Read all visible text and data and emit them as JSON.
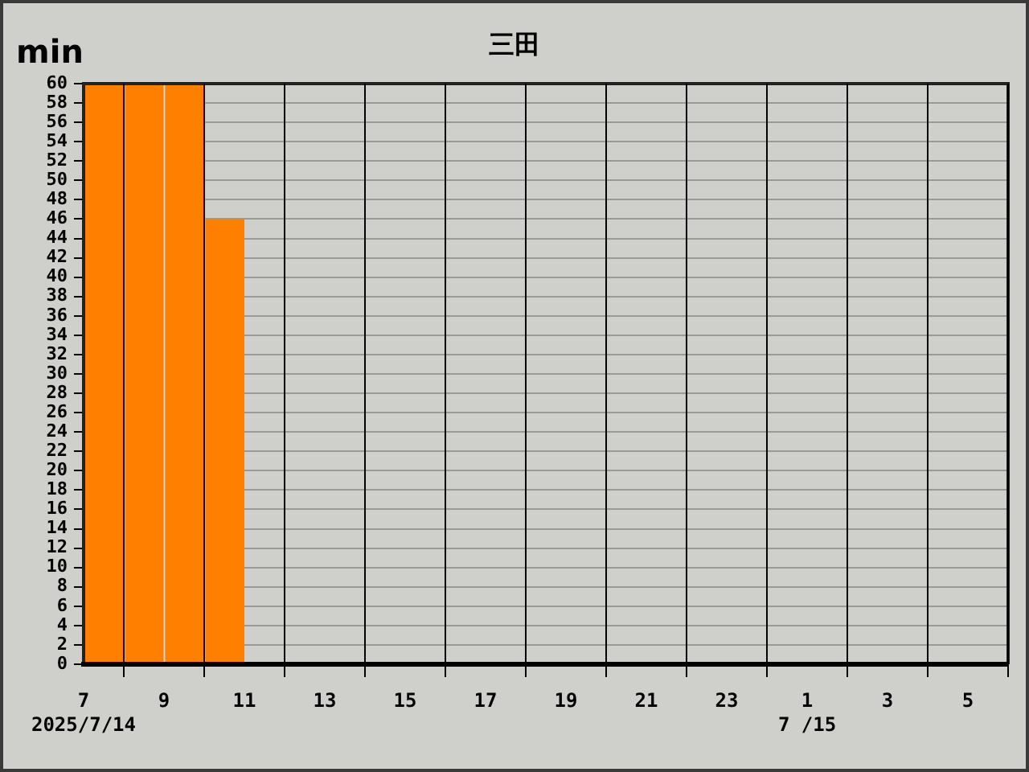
{
  "chart_data": {
    "type": "bar",
    "title": "三田",
    "ylabel": "min",
    "x": [
      "2025-07-14T07:30",
      "2025-07-14T08:30",
      "2025-07-14T09:30",
      "2025-07-14T10:30"
    ],
    "values": [
      60,
      60,
      60,
      46
    ],
    "color": "#ff8000",
    "xlim": [
      "2025-07-14T07:00",
      "2025-07-15T06:00"
    ],
    "xticks": [
      {
        "value": "2025-07-14T07:00",
        "label": "7\n2025/7/14"
      },
      {
        "value": "2025-07-14T09:00",
        "label": "9"
      },
      {
        "value": "2025-07-14T11:00",
        "label": "11"
      },
      {
        "value": "2025-07-14T13:00",
        "label": "13"
      },
      {
        "value": "2025-07-14T15:00",
        "label": "15"
      },
      {
        "value": "2025-07-14T17:00",
        "label": "17"
      },
      {
        "value": "2025-07-14T19:00",
        "label": "19"
      },
      {
        "value": "2025-07-14T21:00",
        "label": "21"
      },
      {
        "value": "2025-07-14T23:00",
        "label": "23"
      },
      {
        "value": "2025-07-15T01:00",
        "label": "1\n7 /15"
      },
      {
        "value": "2025-07-15T03:00",
        "label": "3"
      },
      {
        "value": "2025-07-15T05:00",
        "label": "5"
      }
    ],
    "ylim": [
      0,
      60
    ],
    "yticks": [
      0,
      2,
      4,
      6,
      8,
      10,
      12,
      14,
      16,
      18,
      20,
      22,
      24,
      26,
      28,
      30,
      32,
      34,
      36,
      38,
      40,
      42,
      44,
      46,
      48,
      50,
      52,
      54,
      56,
      58,
      60
    ],
    "grid": true
  }
}
